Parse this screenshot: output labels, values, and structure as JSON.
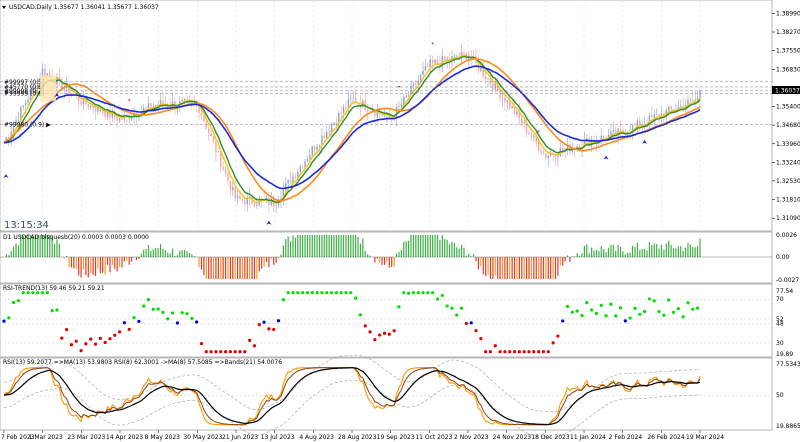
{
  "colors": {
    "background": "#ffffff",
    "grid": "#c9c9c9",
    "bull_candle": "#8fa3d6",
    "bear_candle": "#f3a6a6",
    "fast_ma": "#f5c518",
    "mid_ma": "#2e8b2e",
    "slow_ma": "#ff8c1a",
    "trend_ma": "#1a2ad6",
    "hist_up": "#3cb043",
    "hist_down": "#e53935",
    "hist_amber": "#ffa000",
    "rsi_up": "#00e000",
    "rsi_down": "#e00000",
    "rsi_flat": "#0000e0",
    "rsi3_black": "#000000",
    "rsi3_orange": "#ff9800",
    "rsi3_brown": "#8b4513",
    "rsi3_band": "#9e9e9e"
  },
  "main": {
    "header": "USDCAD,Daily  1.35677 1.36041 1.35677 1.36037",
    "clock": "13:15:34",
    "current_price": "1.36037",
    "price_axis": [
      "1.38990",
      "1.38270",
      "1.37550",
      "1.36830",
      "1.36037",
      "1.35400",
      "1.34680",
      "1.33960",
      "1.33240",
      "1.32530",
      "1.31810",
      "1.31090"
    ],
    "level_labels": [
      "#99997 (0.5)",
      "#45770 (0.6)",
      "#99998 (0.7)",
      "#99999 (0.8)",
      "#99980 (0.9) ▶"
    ]
  },
  "sub1": {
    "header": "D1 USDCAD blsquesb(20) 0.0003 0.0003 0.0000",
    "axis": [
      "0.0026",
      "0.00",
      "-0.0027"
    ]
  },
  "sub2": {
    "header": "RSI-TREND(13) 59.46 59.21 59.21",
    "axis": [
      "77.54",
      "70",
      "52",
      "48",
      "30",
      "19.89"
    ]
  },
  "sub3": {
    "header": "RSI(13) 59.2077  =>MA(13) 53.9803  RSI(8) 62.3001  ->MA(8) 57.5085  =>Bands(21) 54.0076",
    "axis": [
      "77.5343",
      "50",
      "19.8865"
    ]
  },
  "time_axis": [
    "7 Feb 2023",
    "1 Mar 2023",
    "23 Mar 2023",
    "14 Apr 2023",
    "8 May 2023",
    "30 May 2023",
    "21 Jun 2023",
    "13 Jul 2023",
    "4 Aug 2023",
    "28 Aug 2023",
    "19 Sep 2023",
    "11 Oct 2023",
    "2 Nov 2023",
    "24 Nov 2023",
    "18 Dec 2023",
    "11 Jan 2024",
    "2 Feb 2024",
    "26 Feb 2024",
    "19 Mar 2024"
  ],
  "chart_data": {
    "type": "candlestick",
    "symbol": "USDCAD",
    "timeframe": "Daily",
    "close_path_dates": [
      "7 Feb 2023",
      "1 Mar 2023",
      "23 Mar 2023",
      "14 Apr 2023",
      "8 May 2023",
      "30 May 2023",
      "21 Jun 2023",
      "13 Jul 2023",
      "4 Aug 2023",
      "28 Aug 2023",
      "19 Sep 2023",
      "11 Oct 2023",
      "2 Nov 2023",
      "24 Nov 2023",
      "18 Dec 2023",
      "11 Jan 2024",
      "2 Feb 2024",
      "26 Feb 2024",
      "19 Mar 2024"
    ],
    "approx_close": [
      1.34,
      1.368,
      1.356,
      1.349,
      1.355,
      1.355,
      1.318,
      1.317,
      1.338,
      1.357,
      1.349,
      1.37,
      1.374,
      1.356,
      1.335,
      1.34,
      1.344,
      1.351,
      1.357
    ],
    "last_close": 1.36037,
    "ylim": [
      1.3075,
      1.3935
    ]
  }
}
